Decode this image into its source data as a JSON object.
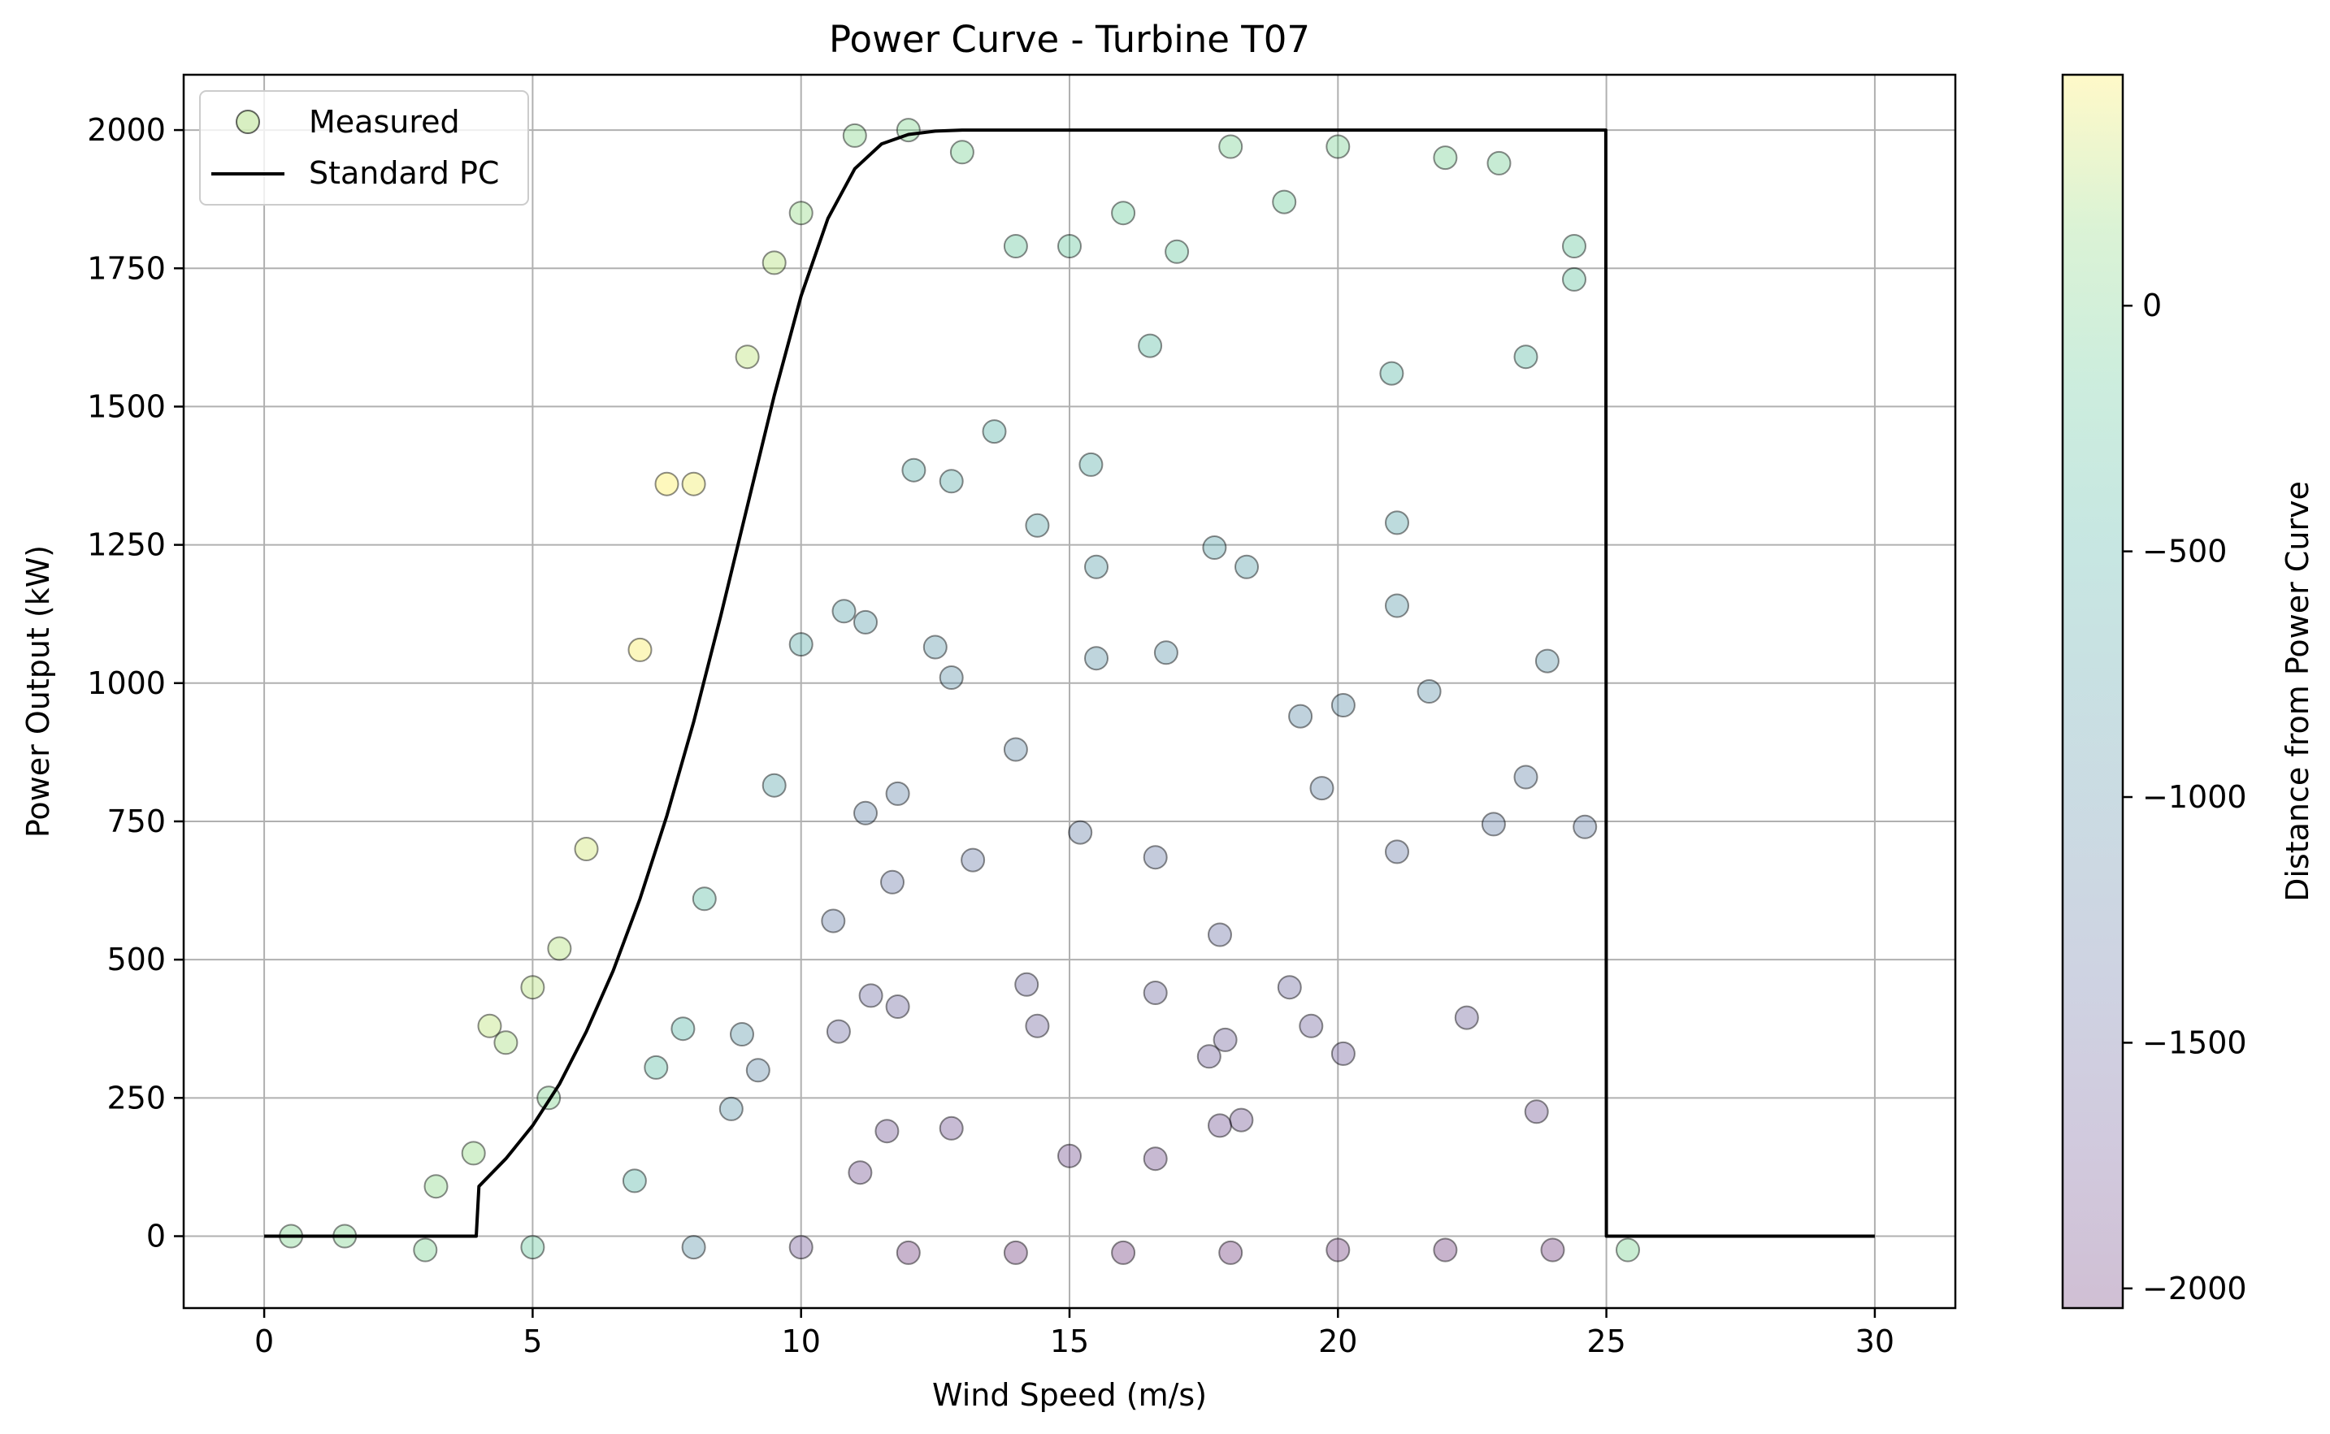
{
  "chart_data": {
    "type": "scatter",
    "title": "Power Curve - Turbine T07",
    "xlabel": "Wind Speed (m/s)",
    "ylabel": "Power Output (kW)",
    "xlim": [
      -1.5,
      31.5
    ],
    "ylim": [
      -130,
      2100
    ],
    "x_ticks": [
      0,
      5,
      10,
      15,
      20,
      25,
      30
    ],
    "y_ticks": [
      0,
      250,
      500,
      750,
      1000,
      1250,
      1500,
      1750,
      2000
    ],
    "grid": true,
    "legend": {
      "placement": "top-left",
      "entries": [
        "Measured",
        "Standard PC"
      ]
    },
    "colorbar": {
      "label": "Distance from Power Curve",
      "range": [
        -2040,
        470
      ],
      "ticks": [
        0,
        -500,
        -1000,
        -1500,
        -2000
      ],
      "colormap": "viridis",
      "alpha": 0.25
    },
    "series": [
      {
        "name": "Standard PC",
        "kind": "line",
        "color": "#000000",
        "x": [
          0,
          3.95,
          4.0,
          4.5,
          5,
          5.5,
          6,
          6.5,
          7,
          7.5,
          8,
          8.5,
          9,
          9.5,
          10,
          10.5,
          11,
          11.5,
          12,
          12.5,
          13,
          14,
          15,
          20,
          24.99,
          25.0,
          30
        ],
        "y": [
          0,
          0,
          90,
          140,
          200,
          275,
          370,
          480,
          610,
          760,
          930,
          1120,
          1320,
          1520,
          1700,
          1840,
          1930,
          1975,
          1992,
          1998,
          2000,
          2000,
          2000,
          2000,
          2000,
          0,
          0
        ]
      },
      {
        "name": "Measured",
        "kind": "scatter",
        "color_by": "distance_from_power_curve",
        "representative_points": [
          [
            4.2,
            380
          ],
          [
            4.5,
            350
          ],
          [
            5.0,
            450
          ],
          [
            5.5,
            520
          ],
          [
            6.0,
            700
          ],
          [
            7.0,
            1060
          ],
          [
            7.5,
            1360
          ],
          [
            8.0,
            1360
          ],
          [
            9.0,
            1590
          ],
          [
            9.5,
            1760
          ],
          [
            10.0,
            1850
          ],
          [
            11.0,
            1990
          ],
          [
            12.0,
            2000
          ],
          [
            13.0,
            1960
          ],
          [
            14.0,
            1790
          ],
          [
            15.0,
            1790
          ],
          [
            16.0,
            1850
          ],
          [
            17.0,
            1780
          ],
          [
            18.0,
            1970
          ],
          [
            19.0,
            1870
          ],
          [
            20.0,
            1970
          ],
          [
            21.0,
            1560
          ],
          [
            22.0,
            1950
          ],
          [
            23.0,
            1940
          ],
          [
            23.5,
            1590
          ],
          [
            24.4,
            1790
          ],
          [
            24.4,
            1730
          ],
          [
            23.9,
            1040
          ],
          [
            23.5,
            830
          ],
          [
            24.6,
            740
          ],
          [
            22.9,
            745
          ],
          [
            22.4,
            395
          ],
          [
            23.7,
            225
          ],
          [
            21.7,
            985
          ],
          [
            21.1,
            1290
          ],
          [
            21.1,
            1140
          ],
          [
            21.1,
            695
          ],
          [
            20.1,
            960
          ],
          [
            19.7,
            810
          ],
          [
            19.3,
            940
          ],
          [
            19.1,
            450
          ],
          [
            19.5,
            380
          ],
          [
            20.1,
            330
          ],
          [
            18.3,
            1210
          ],
          [
            17.7,
            1245
          ],
          [
            17.8,
            545
          ],
          [
            17.9,
            355
          ],
          [
            17.6,
            325
          ],
          [
            18.2,
            210
          ],
          [
            17.8,
            200
          ],
          [
            16.8,
            1055
          ],
          [
            16.5,
            1610
          ],
          [
            16.6,
            685
          ],
          [
            16.6,
            440
          ],
          [
            16.6,
            140
          ],
          [
            15.4,
            1395
          ],
          [
            15.5,
            1210
          ],
          [
            15.5,
            1045
          ],
          [
            15.2,
            730
          ],
          [
            15.0,
            145
          ],
          [
            14.4,
            1285
          ],
          [
            14.4,
            380
          ],
          [
            14.2,
            455
          ],
          [
            14.0,
            880
          ],
          [
            13.6,
            1455
          ],
          [
            13.2,
            680
          ],
          [
            12.8,
            1365
          ],
          [
            12.8,
            1010
          ],
          [
            12.5,
            1065
          ],
          [
            12.8,
            195
          ],
          [
            12.1,
            1385
          ],
          [
            11.8,
            800
          ],
          [
            11.7,
            640
          ],
          [
            11.8,
            415
          ],
          [
            11.6,
            190
          ],
          [
            11.2,
            1110
          ],
          [
            11.2,
            765
          ],
          [
            11.3,
            435
          ],
          [
            11.1,
            115
          ],
          [
            10.8,
            1130
          ],
          [
            10.6,
            570
          ],
          [
            10.7,
            370
          ],
          [
            10.0,
            1070
          ],
          [
            9.5,
            815
          ],
          [
            9.2,
            300
          ],
          [
            8.9,
            365
          ],
          [
            8.7,
            230
          ],
          [
            8.2,
            610
          ],
          [
            7.8,
            375
          ],
          [
            7.3,
            305
          ],
          [
            6.9,
            100
          ],
          [
            5.3,
            250
          ],
          [
            3.9,
            150
          ],
          [
            3.2,
            90
          ],
          [
            0.5,
            0
          ],
          [
            1.5,
            0
          ],
          [
            3.0,
            -25
          ],
          [
            5.0,
            -20
          ],
          [
            8.0,
            -20
          ],
          [
            10.0,
            -20
          ],
          [
            12.0,
            -30
          ],
          [
            14.0,
            -30
          ],
          [
            16.0,
            -30
          ],
          [
            18.0,
            -30
          ],
          [
            20.0,
            -25
          ],
          [
            22.0,
            -25
          ],
          [
            24.0,
            -25
          ],
          [
            25.4,
            -25
          ]
        ]
      }
    ]
  }
}
